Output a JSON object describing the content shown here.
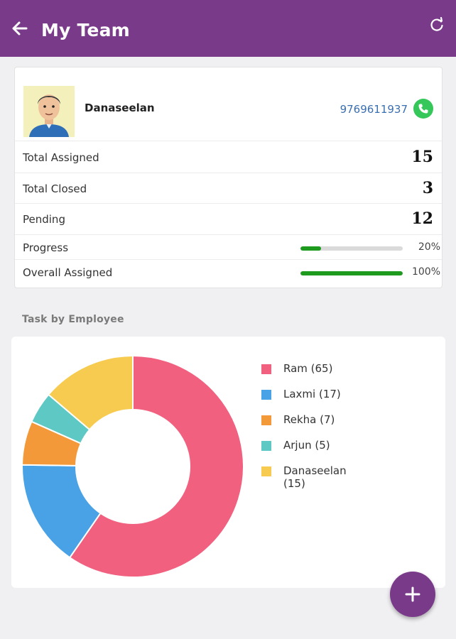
{
  "app": {
    "title": "My Team",
    "accent_color": "#7a3a8a",
    "icons": {
      "back": "arrow-left-icon",
      "refresh": "refresh-icon",
      "call": "phone-icon",
      "fab": "plus-icon"
    }
  },
  "member": {
    "name": "Danaseelan",
    "phone": "9769611937",
    "avatar": "avatar-icon"
  },
  "stats": [
    {
      "label": "Total Assigned",
      "value": "15"
    },
    {
      "label": "Total Closed",
      "value": "3"
    },
    {
      "label": "Pending",
      "value": "12"
    }
  ],
  "bars": [
    {
      "label": "Progress",
      "percent": 20,
      "percent_label": "20%"
    },
    {
      "label": "Overall Assigned",
      "percent": 100,
      "percent_label": "100%"
    }
  ],
  "section": {
    "task_by_employee": "Task by Employee"
  },
  "chart_data": {
    "type": "pie",
    "subtype": "donut",
    "title": "Task by Employee",
    "categories": [
      "Ram",
      "Laxmi",
      "Rekha",
      "Arjun",
      "Danaseelan"
    ],
    "values": [
      65,
      17,
      7,
      5,
      15
    ],
    "colors": [
      "#f1607e",
      "#4aa2e6",
      "#f3993a",
      "#5ec8c4",
      "#f6cb4f"
    ],
    "legend_labels": [
      "Ram (65)",
      "Laxmi (17)",
      "Rekha (7)",
      "Arjun (5)",
      "Danaseelan (15)"
    ],
    "legend_position": "right"
  }
}
